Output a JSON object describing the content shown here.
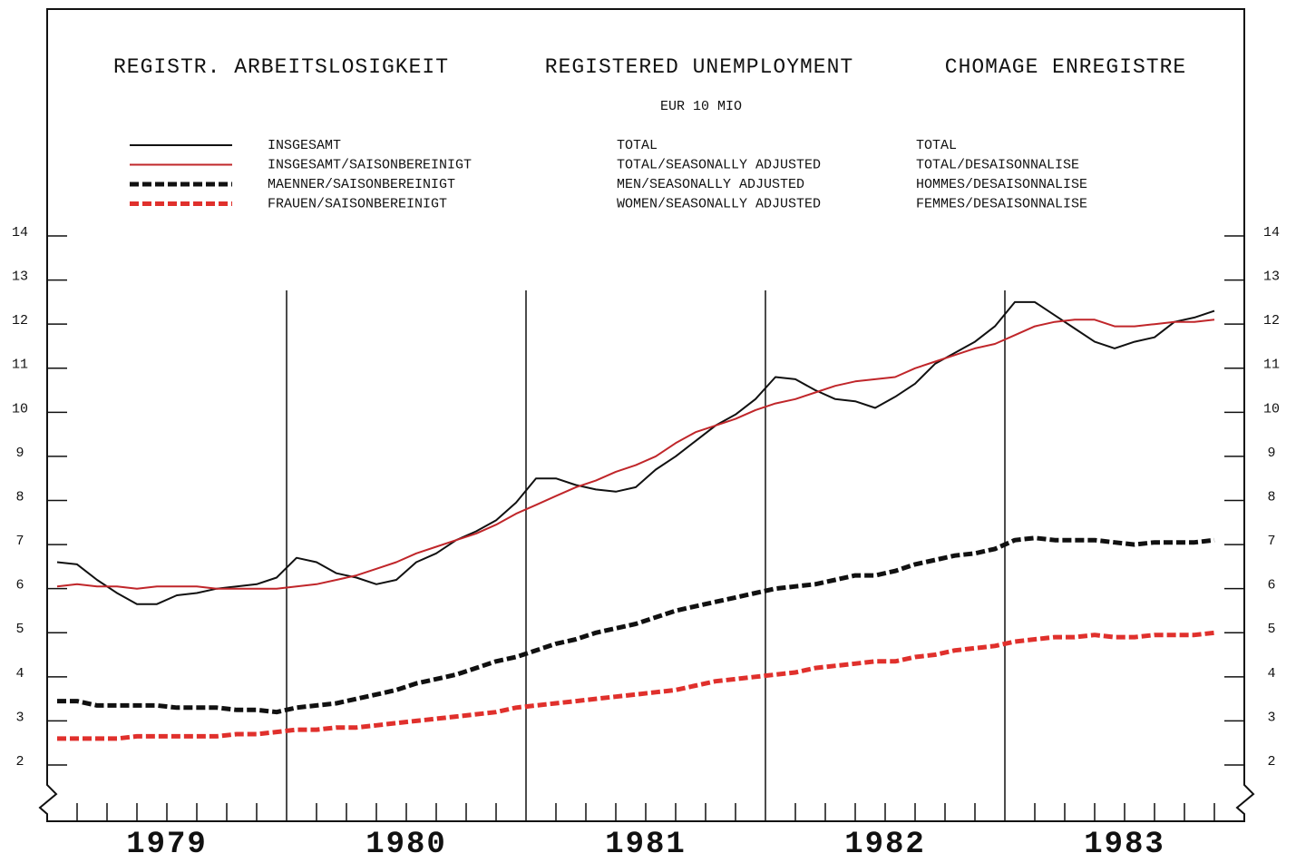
{
  "chart_data": {
    "type": "line",
    "titles": [
      "REGISTR. ARBEITSLOSIGKEIT",
      "REGISTERED UNEMPLOYMENT",
      "CHOMAGE ENREGISTRE"
    ],
    "subtitle": "EUR 10  MIO",
    "legend_en": [
      "TOTAL",
      "TOTAL/SEASONALLY ADJUSTED",
      "MEN/SEASONALLY ADJUSTED",
      "WOMEN/SEASONALLY ADJUSTED"
    ],
    "legend_fr": [
      "TOTAL",
      "TOTAL/DESAISONNALISE",
      "HOMMES/DESAISONNALISE",
      "FEMMES/DESAISONNALISE"
    ],
    "year_labels": [
      "1979",
      "1980",
      "1981",
      "1982",
      "1983"
    ],
    "categories": [
      null,
      null,
      null,
      null,
      null,
      null,
      null,
      null,
      null,
      null,
      null,
      null,
      null,
      null,
      null,
      null,
      null,
      null,
      null,
      null,
      null,
      null,
      null,
      null,
      null,
      null,
      null,
      null,
      null,
      null,
      null,
      null,
      null,
      null,
      null,
      null,
      null,
      null,
      null,
      null,
      null,
      null,
      null,
      null,
      null,
      null,
      null,
      null,
      null,
      null,
      null,
      null,
      null,
      null,
      null,
      null,
      null,
      null,
      null
    ],
    "ylim": [
      2,
      14
    ],
    "yticks": [
      2,
      3,
      4,
      5,
      6,
      7,
      8,
      9,
      10,
      11,
      12,
      13,
      14
    ],
    "series": [
      {
        "name": "INSGESAMT",
        "color": "#111111",
        "dashed": false,
        "values": [
          6.6,
          6.55,
          6.2,
          5.9,
          5.65,
          5.65,
          5.85,
          5.9,
          6.0,
          6.05,
          6.1,
          6.25,
          6.7,
          6.6,
          6.35,
          6.25,
          6.1,
          6.2,
          6.6,
          6.8,
          7.1,
          7.3,
          7.55,
          7.95,
          8.5,
          8.5,
          8.35,
          8.25,
          8.2,
          8.3,
          8.7,
          9.0,
          9.35,
          9.7,
          9.95,
          10.3,
          10.8,
          10.75,
          10.5,
          10.3,
          10.25,
          10.1,
          10.35,
          10.65,
          11.1,
          11.35,
          11.6,
          11.95,
          12.5,
          12.5,
          12.2,
          11.9,
          11.6,
          11.45,
          11.6,
          11.7,
          12.05,
          12.15,
          12.3
        ]
      },
      {
        "name": "INSGESAMT/SAISONBEREINIGT",
        "color": "#c0262a",
        "dashed": false,
        "values": [
          6.05,
          6.1,
          6.05,
          6.05,
          6.0,
          6.05,
          6.05,
          6.05,
          6.0,
          6.0,
          6.0,
          6.0,
          6.05,
          6.1,
          6.2,
          6.3,
          6.45,
          6.6,
          6.8,
          6.95,
          7.1,
          7.25,
          7.45,
          7.7,
          7.9,
          8.1,
          8.3,
          8.45,
          8.65,
          8.8,
          9.0,
          9.3,
          9.55,
          9.7,
          9.85,
          10.05,
          10.2,
          10.3,
          10.45,
          10.6,
          10.7,
          10.75,
          10.8,
          11.0,
          11.15,
          11.3,
          11.45,
          11.55,
          11.75,
          11.95,
          12.05,
          12.1,
          12.1,
          11.95,
          11.95,
          12.0,
          12.05,
          12.05,
          12.1
        ]
      },
      {
        "name": "MAENNER/SAISONBEREINIGT",
        "color": "#111111",
        "dashed": true,
        "values": [
          3.45,
          3.45,
          3.35,
          3.35,
          3.35,
          3.35,
          3.3,
          3.3,
          3.3,
          3.25,
          3.25,
          3.2,
          3.3,
          3.35,
          3.4,
          3.5,
          3.6,
          3.7,
          3.85,
          3.95,
          4.05,
          4.2,
          4.35,
          4.45,
          4.6,
          4.75,
          4.85,
          5.0,
          5.1,
          5.2,
          5.35,
          5.5,
          5.6,
          5.7,
          5.8,
          5.9,
          6.0,
          6.05,
          6.1,
          6.2,
          6.3,
          6.3,
          6.4,
          6.55,
          6.65,
          6.75,
          6.8,
          6.9,
          7.1,
          7.15,
          7.1,
          7.1,
          7.1,
          7.05,
          7.0,
          7.05,
          7.05,
          7.05,
          7.1
        ]
      },
      {
        "name": "FRAUEN/SAISONBEREINIGT",
        "color": "#e0302c",
        "dashed": true,
        "values": [
          2.6,
          2.6,
          2.6,
          2.6,
          2.65,
          2.65,
          2.65,
          2.65,
          2.65,
          2.7,
          2.7,
          2.75,
          2.8,
          2.8,
          2.85,
          2.85,
          2.9,
          2.95,
          3.0,
          3.05,
          3.1,
          3.15,
          3.2,
          3.3,
          3.35,
          3.4,
          3.45,
          3.5,
          3.55,
          3.6,
          3.65,
          3.7,
          3.8,
          3.9,
          3.95,
          4.0,
          4.05,
          4.1,
          4.2,
          4.25,
          4.3,
          4.35,
          4.35,
          4.45,
          4.5,
          4.6,
          4.65,
          4.7,
          4.8,
          4.85,
          4.9,
          4.9,
          4.95,
          4.9,
          4.9,
          4.95,
          4.95,
          4.95,
          5.0
        ]
      }
    ]
  }
}
